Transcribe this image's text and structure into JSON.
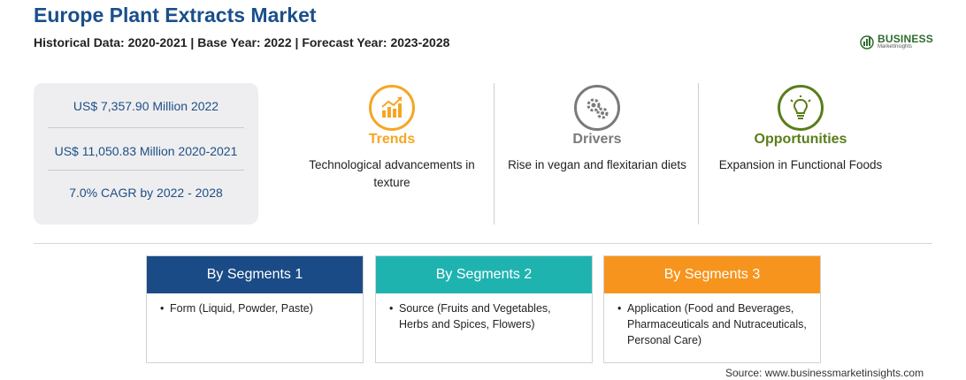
{
  "header": {
    "title": "Europe Plant Extracts Market",
    "subtitle": "Historical Data: 2020-2021 | Base Year: 2022 | Forecast Year: 2023-2028"
  },
  "logo": {
    "name": "BUSINESS",
    "tagline": "MarketInsights",
    "color": "#2e6b2e"
  },
  "stats": [
    "US$ 7,357.90 Million 2022",
    "US$ 11,050.83 Million 2020-2021",
    "7.0% CAGR by 2022 - 2028"
  ],
  "cards": [
    {
      "title": "Trends",
      "text": "Technological advancements in texture",
      "icon": "trend-chart-icon",
      "color": "#f5a623"
    },
    {
      "title": "Drivers",
      "text": "Rise in vegan and flexitarian diets",
      "icon": "gears-icon",
      "color": "#7a7a7a"
    },
    {
      "title": "Opportunities",
      "text": "Expansion in Functional Foods",
      "icon": "lightbulb-icon",
      "color": "#5a7d1a"
    }
  ],
  "segments": [
    {
      "title": "By Segments 1",
      "text": "Form (Liquid, Powder, Paste)",
      "color": "#1b4b87"
    },
    {
      "title": "By Segments 2",
      "text": "Source (Fruits and Vegetables, Herbs and Spices, Flowers)",
      "color": "#1fb3b0"
    },
    {
      "title": "By Segments 3",
      "text": "Application (Food and Beverages, Pharmaceuticals and Nutraceuticals, Personal Care)",
      "color": "#f7941d"
    }
  ],
  "bullet": "•",
  "source": "Source: www.businessmarketinsights.com"
}
